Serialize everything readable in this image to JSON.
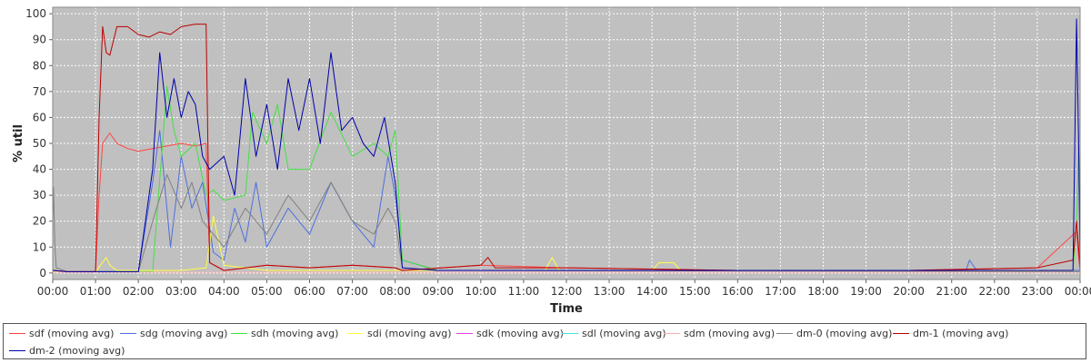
{
  "chart_data": {
    "type": "line",
    "title": "",
    "xlabel": "Time",
    "ylabel": "% util",
    "ylim": [
      0,
      100
    ],
    "xlim": [
      "00:00",
      "24:00"
    ],
    "grid": true,
    "legend_position": "bottom",
    "x_ticks": [
      "00:00",
      "01:00",
      "02:00",
      "03:00",
      "04:00",
      "05:00",
      "06:00",
      "07:00",
      "08:00",
      "09:00",
      "10:00",
      "11:00",
      "12:00",
      "13:00",
      "14:00",
      "15:00",
      "16:00",
      "17:00",
      "18:00",
      "19:00",
      "20:00",
      "21:00",
      "22:00",
      "23:00",
      "00:00"
    ],
    "y_ticks": [
      "0",
      "10",
      "20",
      "30",
      "40",
      "50",
      "60",
      "70",
      "80",
      "90",
      "100"
    ],
    "background_color": "#c0c0c0",
    "series": [
      {
        "name": "sdf (moving avg)",
        "color": "#ff4444",
        "x": [
          "00:00",
          "00:20",
          "01:00",
          "01:05",
          "01:10",
          "01:20",
          "01:30",
          "01:45",
          "02:00",
          "02:20",
          "02:40",
          "03:00",
          "03:20",
          "03:35",
          "03:40",
          "04:00",
          "05:00",
          "06:00",
          "07:00",
          "08:00",
          "08:10",
          "10:00",
          "12:00",
          "16:00",
          "20:00",
          "23:00",
          "23:55",
          "24:00"
        ],
        "y": [
          1,
          0.5,
          0.5,
          30,
          50,
          54,
          50,
          48,
          47,
          48,
          49,
          50,
          49,
          50,
          4,
          1,
          3,
          2,
          3,
          2,
          1,
          3,
          2,
          1,
          1,
          2,
          16,
          0
        ]
      },
      {
        "name": "sdg (moving avg)",
        "color": "#4d6fe0",
        "x": [
          "00:00",
          "00:20",
          "02:00",
          "02:20",
          "02:30",
          "02:45",
          "03:00",
          "03:15",
          "03:30",
          "03:45",
          "04:00",
          "04:15",
          "04:30",
          "04:45",
          "05:00",
          "05:30",
          "06:00",
          "06:30",
          "07:00",
          "07:30",
          "07:50",
          "08:00",
          "08:10",
          "09:00",
          "14:00",
          "21:20",
          "21:25",
          "21:35",
          "24:00"
        ],
        "y": [
          1,
          0.5,
          0.5,
          35,
          55,
          10,
          45,
          25,
          35,
          8,
          5,
          25,
          12,
          35,
          10,
          25,
          15,
          35,
          20,
          10,
          45,
          30,
          5,
          1,
          1,
          1,
          5,
          1,
          1
        ]
      },
      {
        "name": "sdh (moving avg)",
        "color": "#44e044",
        "x": [
          "00:00",
          "02:20",
          "02:40",
          "02:50",
          "03:00",
          "03:20",
          "03:35",
          "03:45",
          "04:00",
          "04:30",
          "04:40",
          "05:00",
          "05:15",
          "05:30",
          "06:00",
          "06:30",
          "07:00",
          "07:30",
          "07:50",
          "08:00",
          "08:10",
          "09:00",
          "23:50",
          "23:55",
          "23:58",
          "24:00"
        ],
        "y": [
          0.5,
          0.5,
          72,
          55,
          45,
          50,
          30,
          32,
          28,
          30,
          62,
          50,
          65,
          40,
          40,
          62,
          45,
          50,
          45,
          55,
          5,
          1,
          1,
          20,
          47,
          30
        ]
      },
      {
        "name": "sdi (moving avg)",
        "color": "#ffff44",
        "x": [
          "00:00",
          "01:00",
          "01:15",
          "01:20",
          "01:30",
          "02:00",
          "03:00",
          "03:35",
          "03:45",
          "04:00",
          "05:00",
          "11:30",
          "11:40",
          "11:50",
          "14:00",
          "14:10",
          "14:30",
          "14:40",
          "24:00"
        ],
        "y": [
          0.5,
          0.5,
          6,
          3,
          1,
          1,
          1,
          2,
          22,
          3,
          1,
          1,
          6,
          1,
          1,
          4,
          4,
          1,
          0.5
        ]
      },
      {
        "name": "sdk (moving avg)",
        "color": "#e044e0",
        "x": [
          "00:00",
          "24:00"
        ],
        "y": [
          0.3,
          0.3
        ]
      },
      {
        "name": "sdl (moving avg)",
        "color": "#44e0e0",
        "x": [
          "00:00",
          "24:00"
        ],
        "y": [
          0.3,
          0.3
        ]
      },
      {
        "name": "sdm (moving avg)",
        "color": "#ffb0b0",
        "x": [
          "00:00",
          "24:00"
        ],
        "y": [
          0.3,
          0.3
        ]
      },
      {
        "name": "dm-0 (moving avg)",
        "color": "#808080",
        "x": [
          "00:00",
          "00:01",
          "00:03",
          "00:05",
          "00:20",
          "02:00",
          "02:20",
          "02:40",
          "03:00",
          "03:15",
          "03:30",
          "03:45",
          "04:00",
          "04:30",
          "05:00",
          "05:30",
          "06:00",
          "06:30",
          "07:00",
          "07:30",
          "07:50",
          "08:00",
          "08:10",
          "09:00",
          "24:00"
        ],
        "y": [
          20,
          33,
          10,
          2,
          0.5,
          0.5,
          20,
          38,
          25,
          35,
          20,
          15,
          10,
          25,
          15,
          30,
          20,
          35,
          20,
          15,
          25,
          20,
          2,
          1,
          0.5
        ]
      },
      {
        "name": "dm-1 (moving avg)",
        "color": "#bb0000",
        "x": [
          "00:00",
          "00:20",
          "01:00",
          "01:05",
          "01:10",
          "01:15",
          "01:20",
          "01:30",
          "01:45",
          "02:00",
          "02:15",
          "02:30",
          "02:45",
          "03:00",
          "03:20",
          "03:35",
          "03:40",
          "04:00",
          "05:00",
          "06:00",
          "07:00",
          "08:00",
          "08:10",
          "10:00",
          "10:10",
          "10:20",
          "12:00",
          "16:00",
          "20:00",
          "23:00",
          "23:50",
          "23:55",
          "24:00"
        ],
        "y": [
          1,
          0.5,
          0.5,
          60,
          95,
          85,
          84,
          95,
          95,
          92,
          91,
          93,
          92,
          95,
          96,
          96,
          4,
          1,
          3,
          2,
          3,
          2,
          1,
          3,
          6,
          2,
          2,
          1,
          1,
          2,
          5,
          20,
          2
        ]
      },
      {
        "name": "dm-2 (moving avg)",
        "color": "#0000aa",
        "x": [
          "00:00",
          "00:20",
          "02:00",
          "02:20",
          "02:30",
          "02:40",
          "02:50",
          "03:00",
          "03:10",
          "03:20",
          "03:30",
          "03:40",
          "04:00",
          "04:15",
          "04:30",
          "04:45",
          "05:00",
          "05:15",
          "05:30",
          "05:45",
          "06:00",
          "06:15",
          "06:30",
          "06:45",
          "07:00",
          "07:15",
          "07:30",
          "07:45",
          "08:00",
          "08:10",
          "09:00",
          "23:50",
          "23:55",
          "23:58",
          "24:00"
        ],
        "y": [
          1,
          0.5,
          0.5,
          40,
          85,
          60,
          75,
          60,
          70,
          65,
          45,
          40,
          45,
          30,
          75,
          45,
          65,
          40,
          75,
          55,
          75,
          50,
          85,
          55,
          60,
          50,
          45,
          60,
          35,
          2,
          1,
          1,
          98,
          50,
          2
        ]
      }
    ]
  }
}
